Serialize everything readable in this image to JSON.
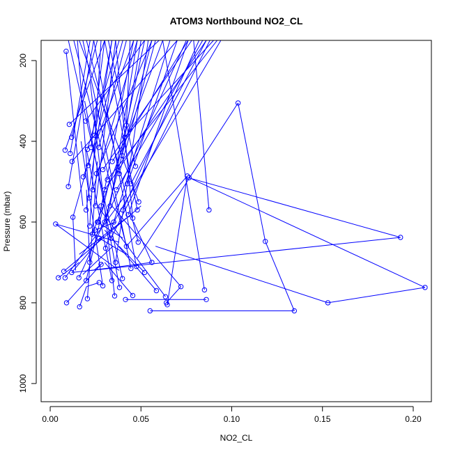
{
  "chart_data": {
    "type": "line",
    "title": "ATOM3 Northbound NO2_CL",
    "xlabel": "NO2_CL",
    "ylabel": "Pressure (mbar)",
    "xlim": [
      -0.005,
      0.21
    ],
    "ylim": [
      1045,
      150
    ],
    "y_reversed": true,
    "x_ticks": [
      0.0,
      0.05,
      0.1,
      0.15,
      0.2
    ],
    "x_tick_labels": [
      "0.00",
      "0.05",
      "0.10",
      "0.15",
      "0.20"
    ],
    "y_ticks": [
      200,
      400,
      600,
      800,
      1000
    ],
    "y_tick_labels": [
      "200",
      "400",
      "600",
      "800",
      "1000"
    ],
    "grid": false,
    "legend": "none",
    "series_color": "#0000ff",
    "marker": "open-circle",
    "points": [
      [
        0.0088,
        177
      ],
      [
        0.0105,
        358
      ],
      [
        0.0118,
        390
      ],
      [
        0.0082,
        422
      ],
      [
        0.011,
        430
      ],
      [
        0.012,
        450
      ],
      [
        0.01,
        512
      ],
      [
        0.003,
        605
      ],
      [
        0.0125,
        588
      ],
      [
        0.0075,
        722
      ],
      [
        0.0045,
        738
      ],
      [
        0.0082,
        738
      ],
      [
        0.0118,
        725
      ],
      [
        0.0158,
        738
      ],
      [
        0.009,
        800
      ],
      [
        0.0162,
        810
      ],
      [
        0.0182,
        488
      ],
      [
        0.0205,
        420
      ],
      [
        0.0195,
        350
      ],
      [
        0.0225,
        415
      ],
      [
        0.021,
        460
      ],
      [
        0.0198,
        570
      ],
      [
        0.0235,
        520
      ],
      [
        0.0218,
        610
      ],
      [
        0.0245,
        385
      ],
      [
        0.0268,
        415
      ],
      [
        0.0255,
        480
      ],
      [
        0.028,
        560
      ],
      [
        0.0265,
        600
      ],
      [
        0.029,
        470
      ],
      [
        0.03,
        520
      ],
      [
        0.0315,
        495
      ],
      [
        0.0305,
        665
      ],
      [
        0.0335,
        640
      ],
      [
        0.035,
        600
      ],
      [
        0.0365,
        520
      ],
      [
        0.0342,
        450
      ],
      [
        0.038,
        480
      ],
      [
        0.0395,
        435
      ],
      [
        0.041,
        390
      ],
      [
        0.042,
        360
      ],
      [
        0.0425,
        505
      ],
      [
        0.04,
        570
      ],
      [
        0.043,
        582
      ],
      [
        0.0445,
        505
      ],
      [
        0.047,
        462
      ],
      [
        0.0455,
        590
      ],
      [
        0.048,
        570
      ],
      [
        0.0485,
        650
      ],
      [
        0.0475,
        710
      ],
      [
        0.0488,
        550
      ],
      [
        0.0445,
        715
      ],
      [
        0.042,
        660
      ],
      [
        0.0398,
        740
      ],
      [
        0.0382,
        762
      ],
      [
        0.0355,
        783
      ],
      [
        0.034,
        745
      ],
      [
        0.029,
        758
      ],
      [
        0.0205,
        790
      ],
      [
        0.0198,
        745
      ],
      [
        0.0218,
        700
      ],
      [
        0.0232,
        630
      ],
      [
        0.0248,
        620
      ],
      [
        0.026,
        600
      ],
      [
        0.027,
        640
      ],
      [
        0.028,
        705
      ],
      [
        0.027,
        750
      ],
      [
        0.0415,
        792
      ],
      [
        0.0455,
        782
      ],
      [
        0.052,
        725
      ],
      [
        0.056,
        700
      ],
      [
        0.0585,
        770
      ],
      [
        0.0635,
        785
      ],
      [
        0.064,
        800
      ],
      [
        0.0645,
        805
      ],
      [
        0.072,
        760
      ],
      [
        0.055,
        820
      ],
      [
        0.086,
        792
      ],
      [
        0.085,
        768
      ],
      [
        0.0755,
        486
      ],
      [
        0.0765,
        490
      ],
      [
        0.0875,
        570
      ],
      [
        0.1035,
        305
      ],
      [
        0.1185,
        648
      ],
      [
        0.1345,
        820
      ],
      [
        0.153,
        800
      ],
      [
        0.193,
        638
      ],
      [
        0.2065,
        762
      ],
      [
        0.03,
        600
      ],
      [
        0.033,
        560
      ],
      [
        0.025,
        560
      ],
      [
        0.0215,
        540
      ],
      [
        0.031,
        590
      ],
      [
        0.036,
        700
      ]
    ],
    "segments": [
      [
        0.0088,
        177,
        0.018,
        560
      ],
      [
        0.0105,
        358,
        0.06,
        150
      ],
      [
        0.0118,
        390,
        0.026,
        150
      ],
      [
        0.0082,
        422,
        0.03,
        150
      ],
      [
        0.011,
        430,
        0.022,
        150
      ],
      [
        0.012,
        450,
        0.07,
        150
      ],
      [
        0.01,
        512,
        0.024,
        150
      ],
      [
        0.003,
        605,
        0.038,
        720
      ],
      [
        0.0125,
        588,
        0.014,
        720
      ],
      [
        0.0075,
        722,
        0.05,
        560
      ],
      [
        0.0045,
        738,
        0.016,
        700
      ],
      [
        0.0082,
        738,
        0.042,
        530
      ],
      [
        0.0118,
        725,
        0.028,
        640
      ],
      [
        0.0158,
        738,
        0.075,
        150
      ],
      [
        0.009,
        800,
        0.029,
        700
      ],
      [
        0.0162,
        810,
        0.02,
        760
      ],
      [
        0.0182,
        488,
        0.046,
        150
      ],
      [
        0.0205,
        420,
        0.038,
        150
      ],
      [
        0.0195,
        350,
        0.052,
        150
      ],
      [
        0.0225,
        415,
        0.03,
        150
      ],
      [
        0.021,
        460,
        0.04,
        150
      ],
      [
        0.0198,
        570,
        0.034,
        150
      ],
      [
        0.0235,
        520,
        0.048,
        150
      ],
      [
        0.0218,
        610,
        0.028,
        150
      ],
      [
        0.0245,
        385,
        0.034,
        150
      ],
      [
        0.0268,
        415,
        0.042,
        150
      ],
      [
        0.0255,
        480,
        0.056,
        150
      ],
      [
        0.028,
        560,
        0.062,
        150
      ],
      [
        0.0265,
        600,
        0.046,
        150
      ],
      [
        0.029,
        470,
        0.078,
        150
      ],
      [
        0.03,
        520,
        0.086,
        150
      ],
      [
        0.0315,
        495,
        0.092,
        150
      ],
      [
        0.0305,
        665,
        0.066,
        150
      ],
      [
        0.0335,
        640,
        0.088,
        150
      ],
      [
        0.035,
        600,
        0.094,
        150
      ],
      [
        0.0365,
        520,
        0.084,
        150
      ],
      [
        0.0342,
        450,
        0.076,
        150
      ],
      [
        0.038,
        480,
        0.058,
        150
      ],
      [
        0.0395,
        435,
        0.05,
        150
      ],
      [
        0.041,
        390,
        0.09,
        150
      ],
      [
        0.042,
        360,
        0.044,
        150
      ],
      [
        0.0425,
        505,
        0.07,
        150
      ],
      [
        0.04,
        570,
        0.082,
        150
      ],
      [
        0.043,
        582,
        0.076,
        150
      ],
      [
        0.0445,
        505,
        0.086,
        150
      ],
      [
        0.047,
        462,
        0.032,
        150
      ],
      [
        0.0455,
        590,
        0.036,
        150
      ],
      [
        0.048,
        570,
        0.03,
        150
      ],
      [
        0.0485,
        650,
        0.02,
        150
      ],
      [
        0.0475,
        710,
        0.024,
        150
      ],
      [
        0.0488,
        550,
        0.016,
        150
      ],
      [
        0.0445,
        715,
        0.018,
        150
      ],
      [
        0.042,
        660,
        0.013,
        150
      ],
      [
        0.0398,
        740,
        0.01,
        150
      ],
      [
        0.0382,
        762,
        0.019,
        300
      ],
      [
        0.0355,
        783,
        0.022,
        250
      ],
      [
        0.034,
        745,
        0.02,
        420
      ],
      [
        0.029,
        758,
        0.017,
        400
      ],
      [
        0.0205,
        790,
        0.026,
        450
      ],
      [
        0.0198,
        745,
        0.033,
        490
      ],
      [
        0.0218,
        700,
        0.02,
        520
      ],
      [
        0.0232,
        630,
        0.03,
        550
      ],
      [
        0.0248,
        620,
        0.036,
        600
      ],
      [
        0.026,
        600,
        0.04,
        640
      ],
      [
        0.027,
        640,
        0.042,
        680
      ],
      [
        0.028,
        705,
        0.024,
        720
      ],
      [
        0.027,
        750,
        0.02,
        760
      ],
      [
        0.0415,
        792,
        0.086,
        792
      ],
      [
        0.0455,
        782,
        0.03,
        700
      ],
      [
        0.052,
        725,
        0.038,
        660
      ],
      [
        0.056,
        700,
        0.046,
        600
      ],
      [
        0.0585,
        770,
        0.03,
        620
      ],
      [
        0.0635,
        785,
        0.026,
        560
      ],
      [
        0.064,
        800,
        0.072,
        760
      ],
      [
        0.0645,
        805,
        0.0755,
        486
      ],
      [
        0.072,
        760,
        0.034,
        560
      ],
      [
        0.055,
        820,
        0.1345,
        820
      ],
      [
        0.085,
        768,
        0.062,
        150
      ],
      [
        0.0755,
        486,
        0.042,
        660
      ],
      [
        0.0765,
        490,
        0.2065,
        762
      ],
      [
        0.0875,
        570,
        0.079,
        150
      ],
      [
        0.1035,
        305,
        0.048,
        690
      ],
      [
        0.1035,
        305,
        0.1185,
        648
      ],
      [
        0.1185,
        648,
        0.1345,
        820
      ],
      [
        0.153,
        800,
        0.2065,
        762
      ],
      [
        0.153,
        800,
        0.058,
        660
      ],
      [
        0.193,
        638,
        0.076,
        490
      ],
      [
        0.193,
        638,
        0.0118,
        725
      ],
      [
        0.003,
        605,
        0.038,
        650
      ],
      [
        0.03,
        600,
        0.056,
        150
      ],
      [
        0.033,
        560,
        0.048,
        150
      ],
      [
        0.025,
        560,
        0.036,
        150
      ],
      [
        0.0215,
        540,
        0.015,
        150
      ],
      [
        0.031,
        590,
        0.052,
        150
      ],
      [
        0.036,
        700,
        0.054,
        150
      ],
      [
        0.0125,
        588,
        0.02,
        470
      ],
      [
        0.056,
        700,
        0.022,
        720
      ],
      [
        0.0345,
        660,
        0.018,
        730
      ],
      [
        0.016,
        680,
        0.042,
        590
      ]
    ]
  }
}
